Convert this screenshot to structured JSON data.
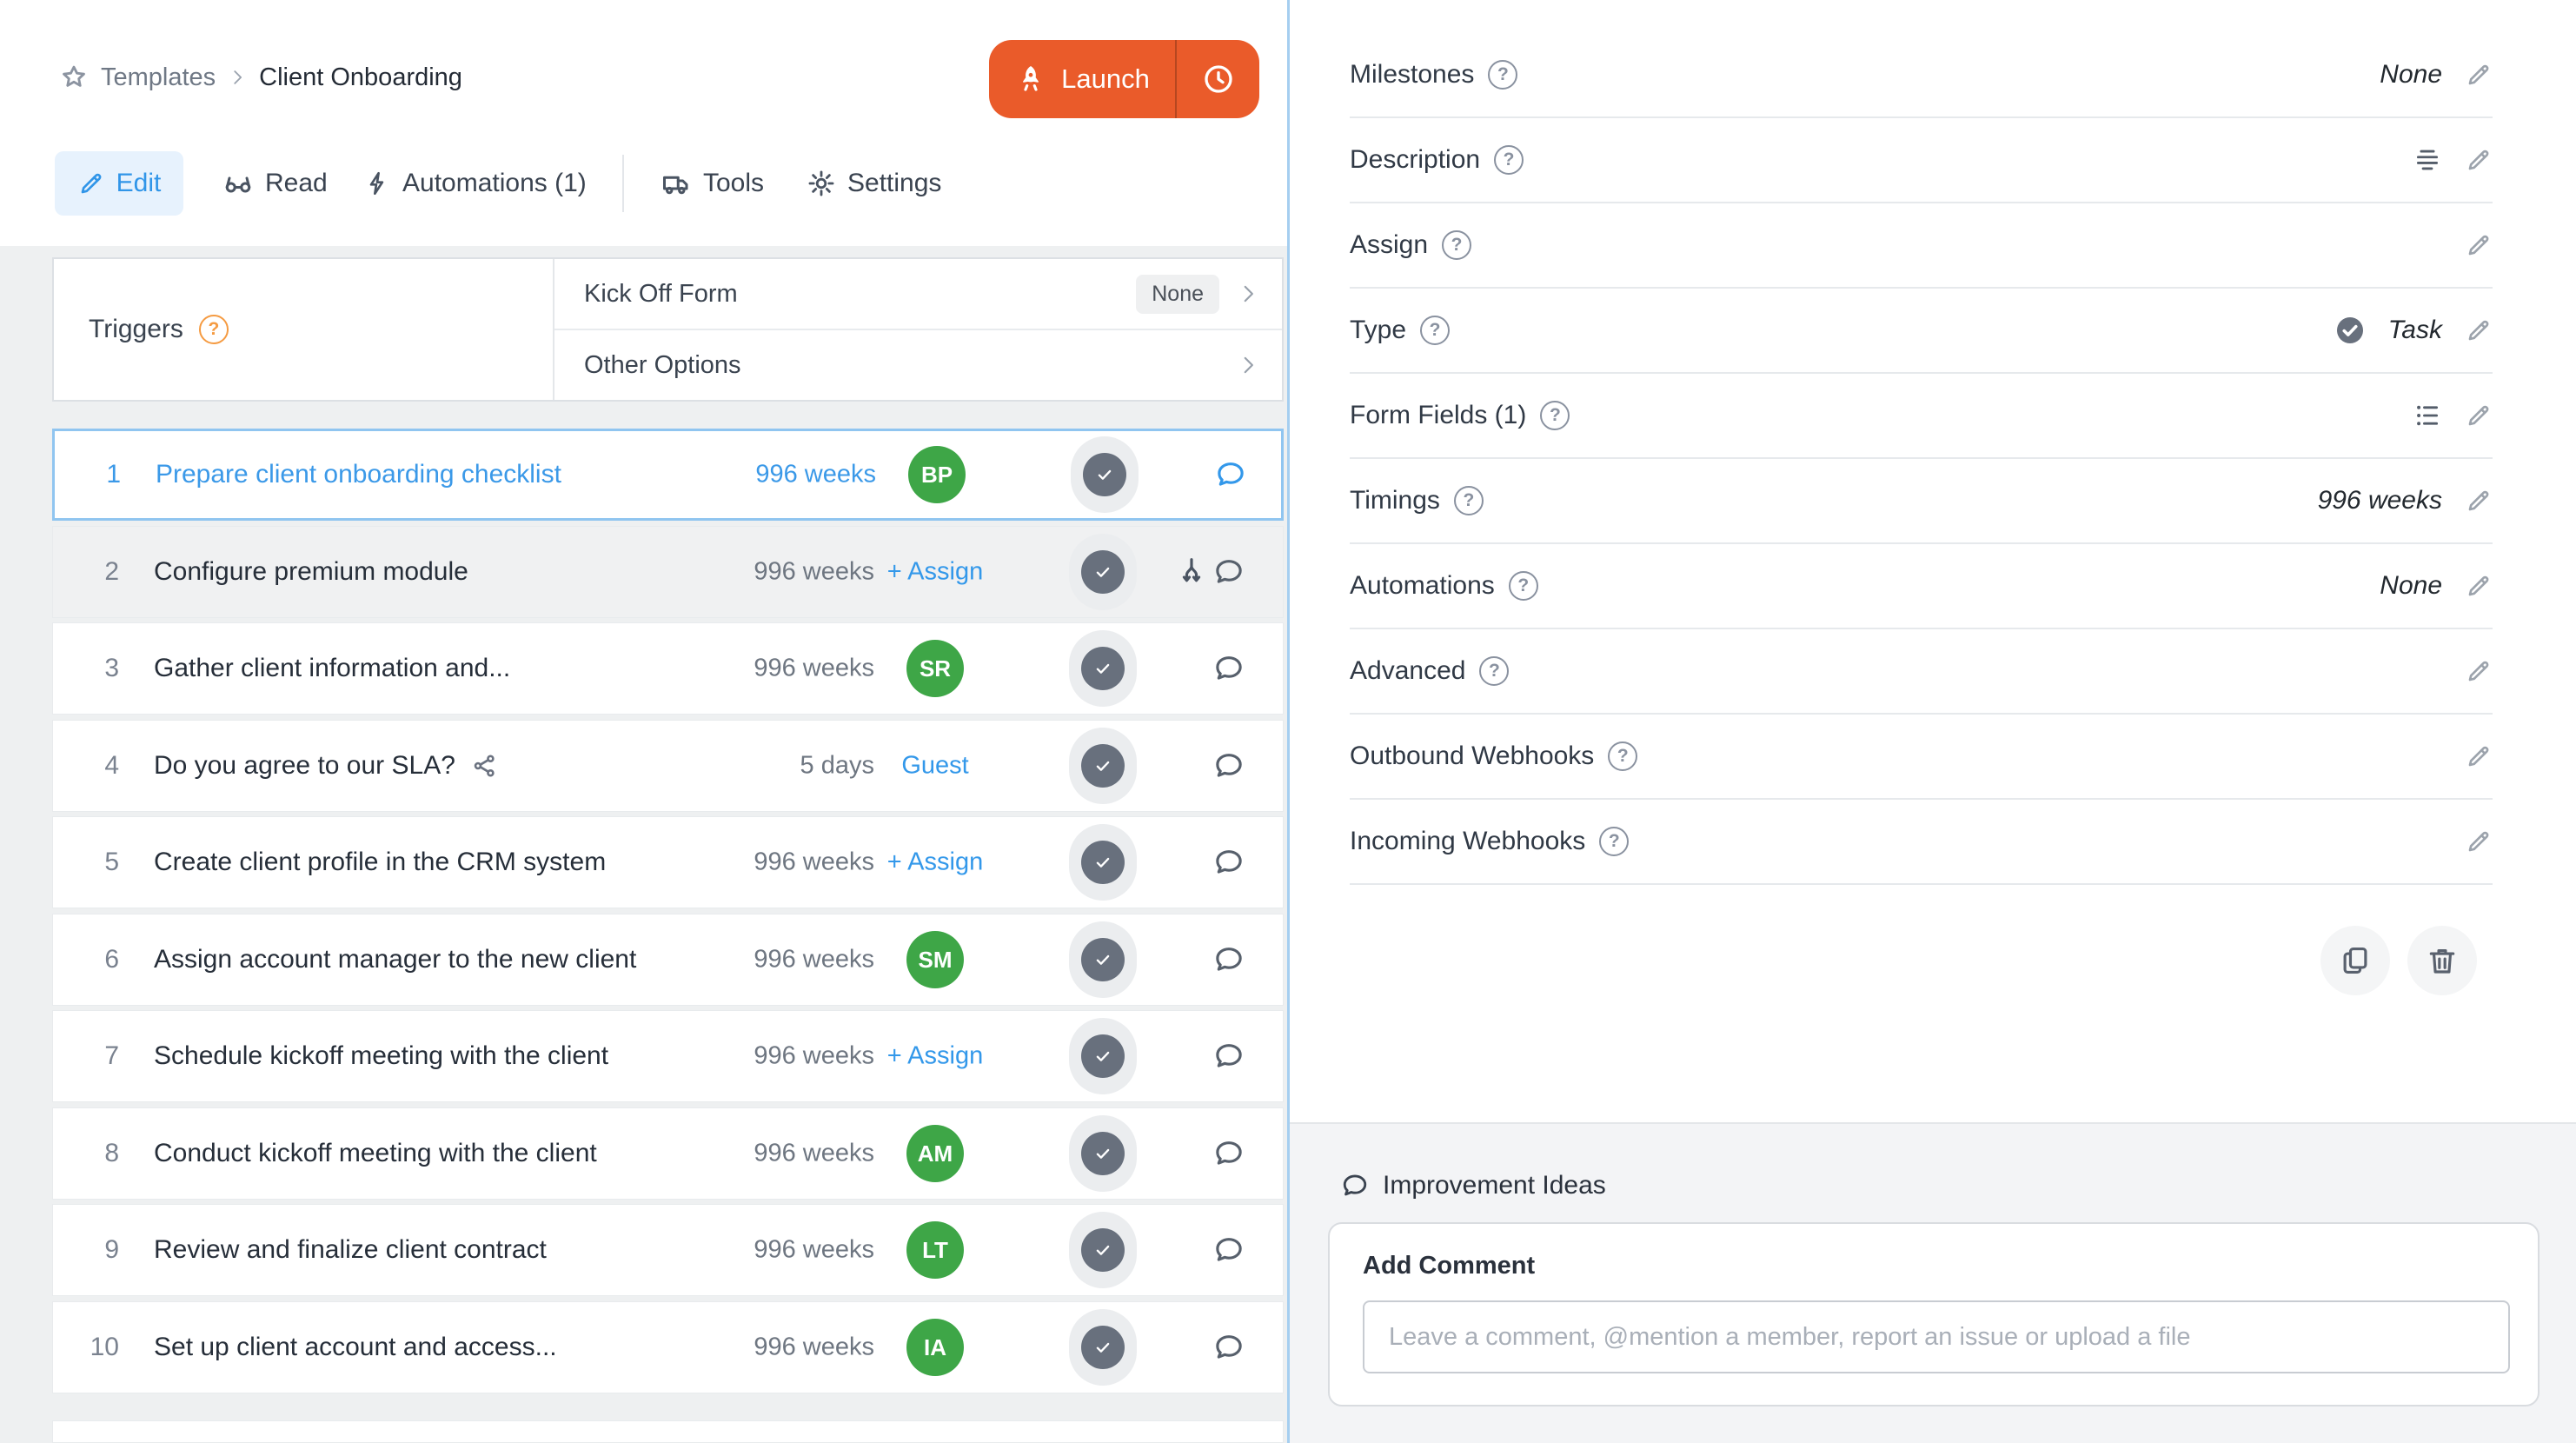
{
  "header": {
    "breadcrumb": {
      "items": [
        "Templates",
        "Client Onboarding"
      ]
    },
    "launch_label": "Launch",
    "tabs": [
      {
        "label": "Edit",
        "icon": "pencil",
        "active": true
      },
      {
        "label": "Read",
        "icon": "glasses",
        "active": false
      },
      {
        "label": "Automations (1)",
        "icon": "bolt",
        "active": false
      },
      {
        "label": "Tools",
        "icon": "truck",
        "active": false
      },
      {
        "label": "Settings",
        "icon": "gear",
        "active": false
      }
    ]
  },
  "triggers": {
    "label": "Triggers",
    "rows": [
      {
        "label": "Kick Off Form",
        "badge": "None"
      },
      {
        "label": "Other Options",
        "badge": null
      }
    ]
  },
  "tasks": [
    {
      "num": "1",
      "title": "Prepare client onboarding checklist",
      "duration": "996 weeks",
      "assign": {
        "kind": "avatar",
        "text": "BP"
      },
      "selected": true,
      "gray": false,
      "share": false,
      "branch": false
    },
    {
      "num": "2",
      "title": "Configure premium module",
      "duration": "996 weeks",
      "assign": {
        "kind": "link",
        "text": "+ Assign"
      },
      "selected": false,
      "gray": true,
      "share": false,
      "branch": true
    },
    {
      "num": "3",
      "title": "Gather client information and...",
      "duration": "996 weeks",
      "assign": {
        "kind": "avatar",
        "text": "SR"
      },
      "selected": false,
      "gray": false,
      "share": false,
      "branch": false
    },
    {
      "num": "4",
      "title": "Do you agree to our SLA?",
      "duration": "5 days",
      "assign": {
        "kind": "guest",
        "text": "Guest"
      },
      "selected": false,
      "gray": false,
      "share": true,
      "branch": false
    },
    {
      "num": "5",
      "title": "Create client profile in the CRM system",
      "duration": "996 weeks",
      "assign": {
        "kind": "link",
        "text": "+ Assign"
      },
      "selected": false,
      "gray": false,
      "share": false,
      "branch": false
    },
    {
      "num": "6",
      "title": "Assign account manager to the new client",
      "duration": "996 weeks",
      "assign": {
        "kind": "avatar",
        "text": "SM"
      },
      "selected": false,
      "gray": false,
      "share": false,
      "branch": false
    },
    {
      "num": "7",
      "title": "Schedule kickoff meeting with the client",
      "duration": "996 weeks",
      "assign": {
        "kind": "link",
        "text": "+ Assign"
      },
      "selected": false,
      "gray": false,
      "share": false,
      "branch": false
    },
    {
      "num": "8",
      "title": "Conduct kickoff meeting with the client",
      "duration": "996 weeks",
      "assign": {
        "kind": "avatar",
        "text": "AM"
      },
      "selected": false,
      "gray": false,
      "share": false,
      "branch": false
    },
    {
      "num": "9",
      "title": "Review and finalize client contract",
      "duration": "996 weeks",
      "assign": {
        "kind": "avatar",
        "text": "LT"
      },
      "selected": false,
      "gray": false,
      "share": false,
      "branch": false
    },
    {
      "num": "10",
      "title": "Set up client account and access...",
      "duration": "996 weeks",
      "assign": {
        "kind": "avatar",
        "text": "IA"
      },
      "selected": false,
      "gray": false,
      "share": false,
      "branch": false
    }
  ],
  "panel": {
    "rows": [
      {
        "label": "Milestones",
        "help": true,
        "value": "None",
        "prefix_icon": null,
        "icons": [
          "pencil"
        ]
      },
      {
        "label": "Description",
        "help": true,
        "value": null,
        "prefix_icon": null,
        "icons": [
          "paragraph",
          "pencil"
        ]
      },
      {
        "label": "Assign",
        "help": true,
        "value": null,
        "prefix_icon": null,
        "icons": [
          "pencil"
        ]
      },
      {
        "label": "Type",
        "help": true,
        "value": "Task",
        "prefix_icon": "check-circle",
        "icons": [
          "pencil"
        ]
      },
      {
        "label": "Form Fields (1)",
        "help": true,
        "value": null,
        "prefix_icon": null,
        "icons": [
          "list",
          "pencil"
        ]
      },
      {
        "label": "Timings",
        "help": true,
        "value": "996 weeks",
        "prefix_icon": null,
        "icons": [
          "pencil"
        ]
      },
      {
        "label": "Automations",
        "help": true,
        "value": "None",
        "prefix_icon": null,
        "icons": [
          "pencil"
        ]
      },
      {
        "label": "Advanced",
        "help": true,
        "value": null,
        "prefix_icon": null,
        "icons": [
          "pencil"
        ]
      },
      {
        "label": "Outbound Webhooks",
        "help": true,
        "value": null,
        "prefix_icon": null,
        "icons": [
          "pencil"
        ]
      },
      {
        "label": "Incoming Webhooks",
        "help": true,
        "value": null,
        "prefix_icon": null,
        "icons": [
          "pencil"
        ]
      }
    ]
  },
  "comments": {
    "section_title": "Improvement Ideas",
    "card_title": "Add Comment",
    "placeholder": "Leave a comment, @mention a member, report an issue or upload a file"
  },
  "colors": {
    "accent_orange": "#EA5B2A",
    "link_blue": "#3398EA",
    "avatar_green": "#3EA647",
    "selected_border": "#90C5F0",
    "panel_divider_blue": "#A5CEF0"
  }
}
